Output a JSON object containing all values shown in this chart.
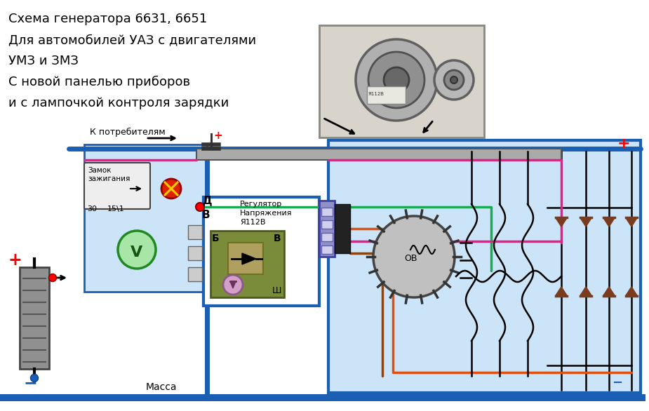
{
  "bg_color": "#ffffff",
  "light_blue_bg": "#cce4f7",
  "blue_border": "#1a5fb4",
  "title_lines": [
    "Схема генератора 6631, 6651",
    "Для автомобилей УАЗ с двигателями",
    "УМЗ и ЗМЗ",
    "С новой панелью приборов",
    "и с лампочкой контроля зарядки"
  ],
  "text_consumers": "К потребителям",
  "text_lock": "Замок\nзажигания",
  "text_mass": "Масса",
  "text_regulator": "Регулятор\nНапряжения\nЯ112В",
  "diode_color": "#7a3b1e",
  "wire_blue": "#1a5fb4",
  "wire_green": "#1aaa55",
  "wire_pink": "#e91e8c",
  "wire_orange": "#e05010",
  "wire_gray": "#888888",
  "wire_black": "#111111",
  "wire_red": "#cc0000"
}
